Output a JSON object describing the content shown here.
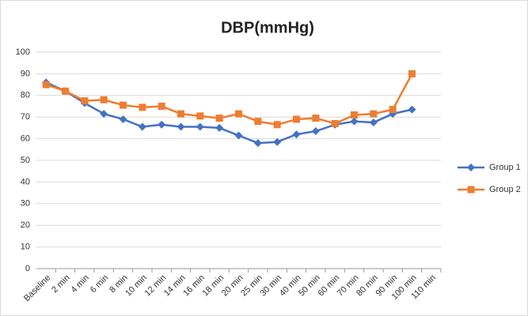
{
  "chart_data": {
    "type": "line",
    "title": "DBP(mmHg)",
    "categories": [
      "Baseline",
      "2 min",
      "4 min",
      "6 min",
      "8 min",
      "10 min",
      "12 min",
      "14 min",
      "16 min",
      "18 min",
      "20 min",
      "25 min",
      "30 min",
      "40 min",
      "50 min",
      "60 min",
      "70 min",
      "80 min",
      "90 min",
      "100 min",
      "110 min"
    ],
    "series": [
      {
        "name": "Group 1",
        "color": "#4472c4",
        "marker": "diamond",
        "values": [
          86,
          82,
          76.5,
          71.5,
          69,
          65.5,
          66.5,
          65.5,
          65.5,
          65,
          61.5,
          58,
          58.5,
          62,
          63.5,
          66.5,
          68,
          67.5,
          71.5,
          73.5,
          null
        ]
      },
      {
        "name": "Group 2",
        "color": "#ed7d31",
        "marker": "square",
        "values": [
          85,
          82,
          77.5,
          78,
          75.5,
          74.5,
          75,
          71.5,
          70.5,
          69.5,
          71.5,
          68,
          66.5,
          69,
          69.5,
          67,
          71,
          71.5,
          73.5,
          90,
          null
        ]
      }
    ],
    "ylim": [
      0,
      100
    ],
    "yticks": [
      0,
      10,
      20,
      30,
      40,
      50,
      60,
      70,
      80,
      90,
      100
    ],
    "grid": true,
    "legend": "right"
  }
}
